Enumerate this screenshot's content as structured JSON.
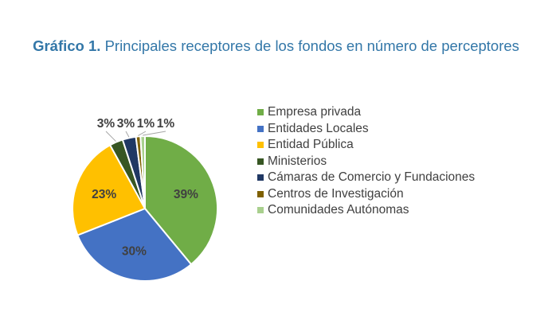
{
  "title": {
    "prefix": "Gráfico 1.",
    "text": "Principales receptores de los fondos en número de perceptores"
  },
  "chart_data": {
    "type": "pie",
    "categories": [
      "Empresa privada",
      "Entidades Locales",
      "Entidad Pública",
      "Ministerios",
      "Cámaras de Comercio y Fundaciones",
      "Centros de Investigación",
      "Comunidades Autónomas"
    ],
    "values": [
      39,
      30,
      23,
      3,
      3,
      1,
      1
    ],
    "labels": [
      "39%",
      "30%",
      "23%",
      "3%",
      "3%",
      "1%",
      "1%"
    ],
    "colors": [
      "#70ad47",
      "#4472c4",
      "#ffc000",
      "#375623",
      "#203864",
      "#7f6000",
      "#a9d08e"
    ],
    "legend": "right"
  }
}
